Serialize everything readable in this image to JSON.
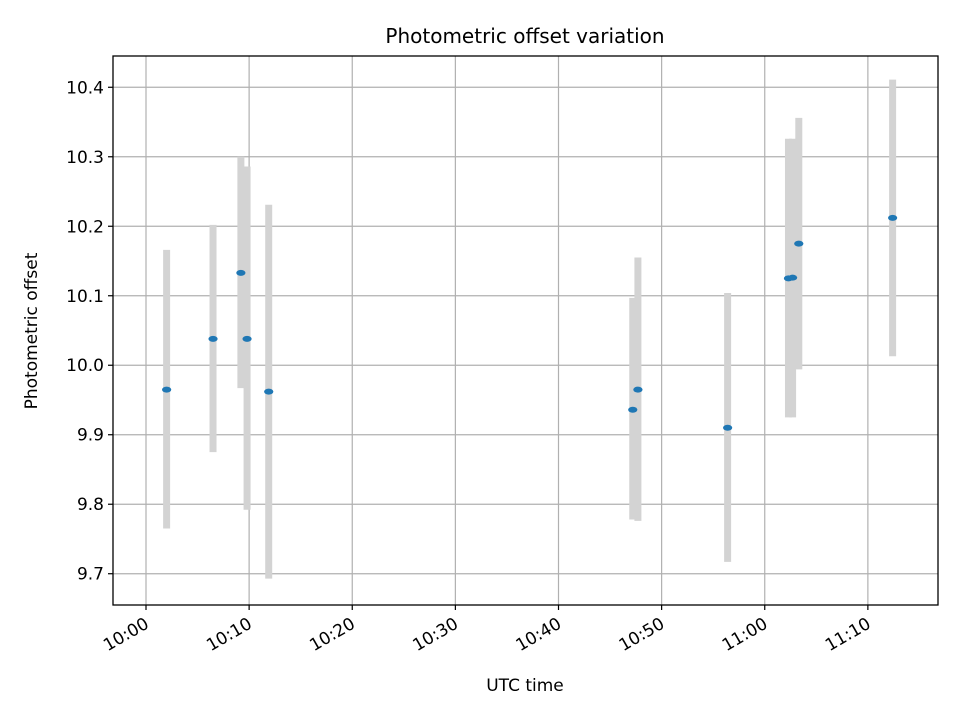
{
  "chart_data": {
    "type": "scatter",
    "title": "Photometric offset variation",
    "xlabel": "UTC time",
    "ylabel": "Photometric offset",
    "xlim": [
      "09:56.8",
      "11:16.8"
    ],
    "ylim": [
      9.655,
      10.445
    ],
    "grid": true,
    "x_ticks": [
      "10:00",
      "10:10",
      "10:20",
      "10:30",
      "10:40",
      "10:50",
      "11:00",
      "11:10"
    ],
    "y_ticks": [
      "9.7",
      "9.8",
      "9.9",
      "10.0",
      "10.1",
      "10.2",
      "10.3",
      "10.4"
    ],
    "marker_color": "#1f77b4",
    "errorbar_color": "#d3d3d3",
    "points": [
      {
        "x": "10:02",
        "y": 9.965,
        "ymin": 9.765,
        "ymax": 10.166
      },
      {
        "x": "10:06.5",
        "y": 10.038,
        "ymin": 9.875,
        "ymax": 10.202
      },
      {
        "x": "10:09.2",
        "y": 10.133,
        "ymin": 9.967,
        "ymax": 10.3
      },
      {
        "x": "10:09.8",
        "y": 10.038,
        "ymin": 9.792,
        "ymax": 10.286
      },
      {
        "x": "10:11.9",
        "y": 9.962,
        "ymin": 9.693,
        "ymax": 10.231
      },
      {
        "x": "10:47.2",
        "y": 9.936,
        "ymin": 9.778,
        "ymax": 10.097
      },
      {
        "x": "10:47.7",
        "y": 9.965,
        "ymin": 9.776,
        "ymax": 10.155
      },
      {
        "x": "10:56.4",
        "y": 9.91,
        "ymin": 9.717,
        "ymax": 10.104
      },
      {
        "x": "11:02.3",
        "y": 10.125,
        "ymin": 9.925,
        "ymax": 10.326
      },
      {
        "x": "11:02.7",
        "y": 10.126,
        "ymin": 9.925,
        "ymax": 10.326
      },
      {
        "x": "11:03.3",
        "y": 10.175,
        "ymin": 9.994,
        "ymax": 10.356
      },
      {
        "x": "11:12.4",
        "y": 10.212,
        "ymin": 10.013,
        "ymax": 10.411
      }
    ]
  }
}
